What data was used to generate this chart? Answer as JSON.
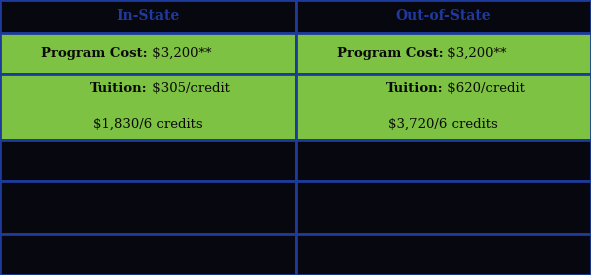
{
  "table_bg": "#070710",
  "border_color": "#1e3a9a",
  "green_color": "#7dc242",
  "text_dark": "#0a0a08",
  "header_text_color": "#1e3a9e",
  "col_split": 0.5,
  "figsize": [
    5.91,
    2.75
  ],
  "dpi": 100,
  "row_heights_raw": [
    0.8,
    1.0,
    1.6,
    1.0,
    1.3,
    1.0
  ],
  "header_col1": "In-State",
  "header_col2": "Out-of-State",
  "prog_cost_bold": "Program Cost:",
  "prog_cost_val": " $3,200**",
  "tuition_bold_left": "Tuition:",
  "tuition_line1_left": " $305/credit",
  "tuition_line2_left": "$1,830/6 credits",
  "tuition_bold_right": "Tuition:",
  "tuition_line1_right": " $620/credit",
  "tuition_line2_right": "$3,720/6 credits",
  "font_size_header": 10,
  "font_size_body": 9.5,
  "border_lw": 2.0
}
